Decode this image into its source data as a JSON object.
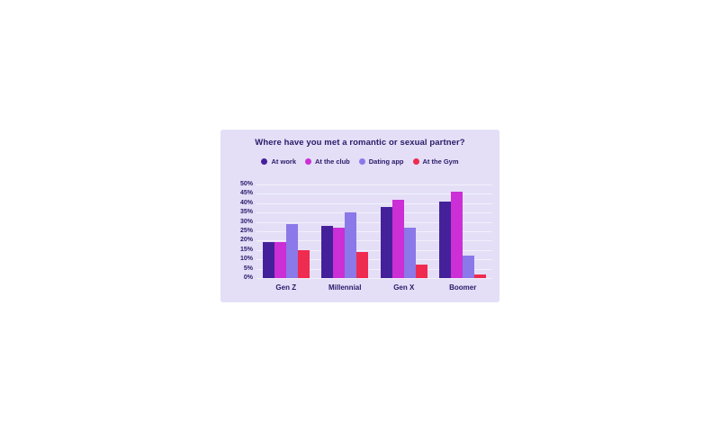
{
  "page": {
    "background": "#ffffff"
  },
  "card": {
    "background": "#e4dff7",
    "text_color": "#2b1968",
    "gridline_color": "#f3f0fb"
  },
  "chart_data": {
    "type": "bar",
    "title": "Where have you met a romantic or sexual partner?",
    "categories": [
      "Gen Z",
      "Millennial",
      "Gen X",
      "Boomer"
    ],
    "series": [
      {
        "name": "At work",
        "color": "#44219b",
        "values": [
          19,
          28,
          38,
          41
        ]
      },
      {
        "name": "At the club",
        "color": "#cb2fd5",
        "values": [
          19,
          27,
          42,
          46
        ]
      },
      {
        "name": "Dating app",
        "color": "#8b78e9",
        "values": [
          29,
          35,
          27,
          12
        ]
      },
      {
        "name": "At the Gym",
        "color": "#ef2b4f",
        "values": [
          15,
          14,
          7,
          2
        ]
      }
    ],
    "xlabel": "",
    "ylabel": "",
    "ylim": [
      0,
      50
    ],
    "ytick_step": 5,
    "ytick_labels": [
      "0%",
      "5%",
      "10%",
      "15%",
      "20%",
      "25%",
      "30%",
      "35%",
      "40%",
      "45%",
      "50%"
    ],
    "grid": true,
    "legend_position": "top"
  }
}
